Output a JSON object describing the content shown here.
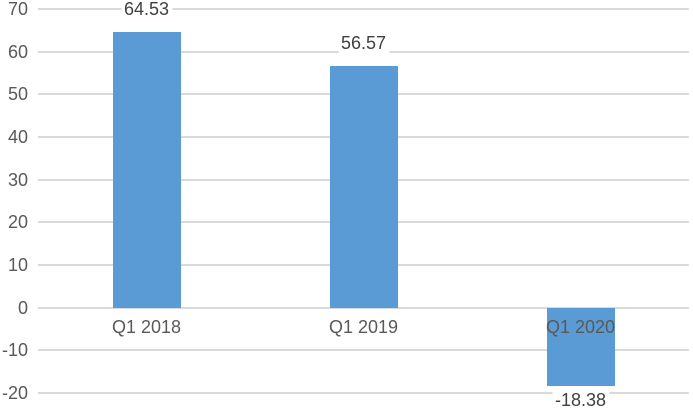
{
  "chart_data": {
    "type": "bar",
    "title": "",
    "xlabel": "",
    "ylabel": "",
    "categories": [
      "Q1 2018",
      "Q1 2019",
      "Q1 2020"
    ],
    "values": [
      64.53,
      56.57,
      -18.38
    ],
    "data_labels": [
      "64.53",
      "56.57",
      "-18.38"
    ],
    "y_ticks": [
      70,
      60,
      50,
      40,
      30,
      20,
      10,
      0,
      -10,
      -20
    ],
    "y_tick_labels": [
      "70",
      "60",
      "50",
      "40",
      "30",
      "20",
      "10",
      "0",
      "-10",
      "-20"
    ],
    "ylim": [
      -20,
      70
    ],
    "grid": true,
    "legend": false,
    "colors": {
      "bar": "#5B9BD5",
      "gridline": "#D9D9D9",
      "tick_label": "#595959",
      "data_label": "#404040",
      "category_label": "#595959",
      "background": "#FFFFFF"
    }
  }
}
